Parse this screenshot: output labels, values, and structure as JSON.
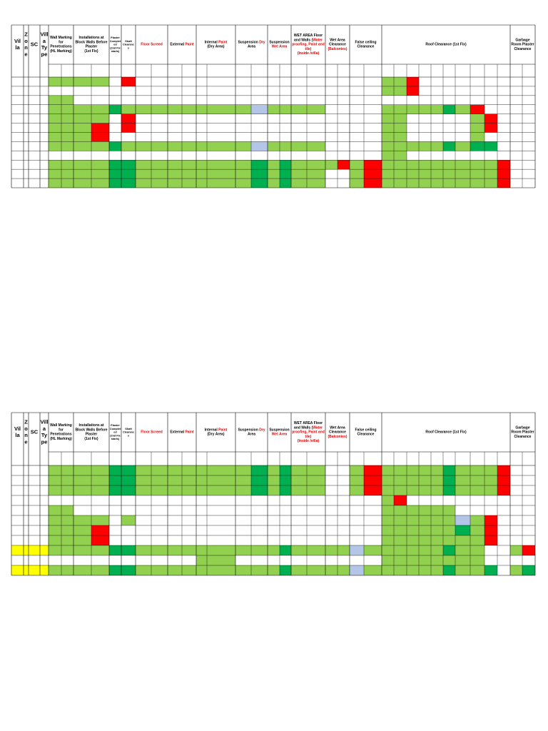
{
  "status_colors": {
    "g": "#92d050",
    "G": "#00b050",
    "r": "#ff0000",
    "b": "#b4c6e7",
    "y": "#ffff00"
  },
  "headers": [
    [
      [
        "Vil"
      ],
      [
        "la"
      ]
    ],
    [
      [
        "Z"
      ],
      [
        "o"
      ],
      [
        "n"
      ],
      [
        "e"
      ]
    ],
    [
      [
        "SC"
      ]
    ],
    [
      [
        "Vill"
      ],
      [
        "a"
      ],
      [
        "Ty"
      ],
      [
        "pe"
      ]
    ],
    [
      [
        "Wall Marking"
      ],
      [
        "for"
      ],
      [
        "Penetrations"
      ],
      [
        "(HL Marking)"
      ]
    ],
    [
      [
        "Installations at"
      ],
      [
        "Block Walls Before"
      ],
      [
        "Plaster"
      ],
      [
        "(1st Fix)"
      ]
    ],
    [
      [
        "Plaster"
      ],
      [
        "Complet"
      ],
      [
        "ed"
      ],
      [
        "(2nd Fix"
      ],
      [
        "starts)"
      ]
    ],
    [
      [
        "Shaft"
      ],
      [
        "Clearanc"
      ],
      [
        "e"
      ]
    ],
    [
      [
        {
          "text": "Floor Screed",
          "color": "#e00000"
        }
      ]
    ],
    [
      [
        "External ",
        {
          "text": "Paint",
          "color": "#e00000"
        }
      ]
    ],
    [
      [
        "Internal ",
        {
          "text": "Paint",
          "color": "#e00000"
        }
      ],
      [
        "(Dry Area)"
      ]
    ],
    [
      [
        "Suspension ",
        {
          "text": "Dry",
          "color": "#e00000"
        }
      ],
      [
        "Area"
      ]
    ],
    [
      [
        "Suspension"
      ],
      [
        {
          "text": "Wet Area",
          "color": "#e00000"
        }
      ]
    ],
    [
      [
        "WET AREA Floor"
      ],
      [
        "and Walls (",
        {
          "text": "Water",
          "color": "#e00000"
        }
      ],
      [
        {
          "text": "proofing, Paint and",
          "color": "#e00000"
        }
      ],
      [
        {
          "text": "tile)",
          "color": "#e00000"
        }
      ],
      [
        {
          "text": "(Inside /villa)",
          "color": "#e00000"
        }
      ]
    ],
    [
      [
        "Wet Area"
      ],
      [
        "Clearance"
      ],
      [
        {
          "text": "(Balconies)",
          "color": "#e00000"
        }
      ]
    ],
    [
      [
        "False ceiling"
      ],
      [
        "Clearance"
      ]
    ],
    [
      [
        "Roof Clearance (1st Fix)"
      ]
    ],
    [
      [
        "Garbage"
      ],
      [
        "Room Plaster"
      ],
      [
        "Clearance"
      ]
    ]
  ],
  "tables": [
    {
      "rows": [
        "....gggg.r................ggr.........",
        "..........................ggr.........",
        "....gg................................",
        "....ggggGggggggggbgggg....gggggGgr....",
        "....gggg.r................gg.....gr...",
        "....gggr.r................gg.....gr...",
        "....gggr..................gg.....g....",
        "....ggggGggggggggbgggg....gggggGgGG...",
        "..........................gg..........",
        "....ggggGGgggggggGgGgggrgrgggggggggr..",
        "....ggggGGgggggggGgGgg..grgggggggggr..",
        "....ggggGGgggggggGgGgg..grgggggggggr.."
      ]
    },
    {
      "rows": [
        "....ggggGGgggggggGgGgg..grgggggGgggr..",
        "....ggggGGgggggggGgGgg..grgggggGgggr..",
        "....ggggGGgggggggGgGgg..grgggggGgggr..",
        "..........................gr..........",
        "....gg....................gggggg......",
        "....gggg.g................ggggggbgr...",
        "....gggr..................ggggggGgr...",
        "....gggr..................ggggggggr...",
        "yyyyggggGGgggggggggGggggbggggggGgg..gr",
        "..............gg..........gggggggg....",
        "yyyyggggGGgggggggggGggggbggggggGggG.gG"
      ]
    }
  ]
}
